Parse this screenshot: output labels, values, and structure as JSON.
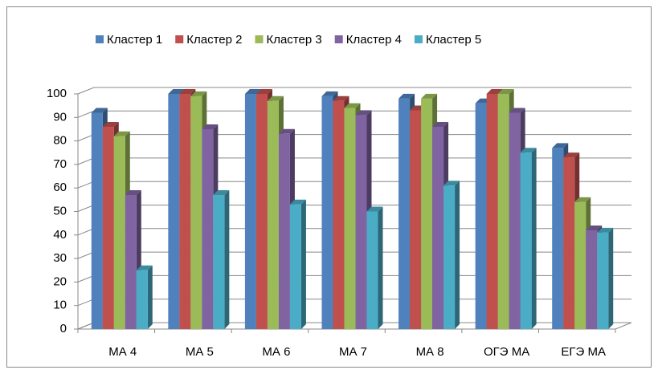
{
  "chart_data": {
    "type": "bar3d",
    "categories": [
      "МА 4",
      "МА 5",
      "МА 6",
      "МА 7",
      "МА 8",
      "ОГЭ МА",
      "ЕГЭ МА"
    ],
    "series": [
      {
        "name": "Кластер 1",
        "color": "#4f81bd",
        "values": [
          92,
          100,
          100,
          99,
          98,
          96,
          77
        ]
      },
      {
        "name": "Кластер 2",
        "color": "#c0504d",
        "values": [
          86,
          100,
          100,
          97,
          93,
          100,
          73
        ]
      },
      {
        "name": "Кластер 3",
        "color": "#9bbb59",
        "values": [
          82,
          99,
          97,
          94,
          98,
          100,
          54
        ]
      },
      {
        "name": "Кластер 4",
        "color": "#8064a2",
        "values": [
          57,
          85,
          83,
          91,
          86,
          92,
          42
        ]
      },
      {
        "name": "Кластер 5",
        "color": "#4bacc6",
        "values": [
          25,
          57,
          53,
          50,
          61,
          75,
          41
        ]
      }
    ],
    "ylim": [
      0,
      100
    ],
    "yticks": [
      0,
      10,
      20,
      30,
      40,
      50,
      60,
      70,
      80,
      90,
      100
    ],
    "grid": true,
    "legend": "top"
  }
}
